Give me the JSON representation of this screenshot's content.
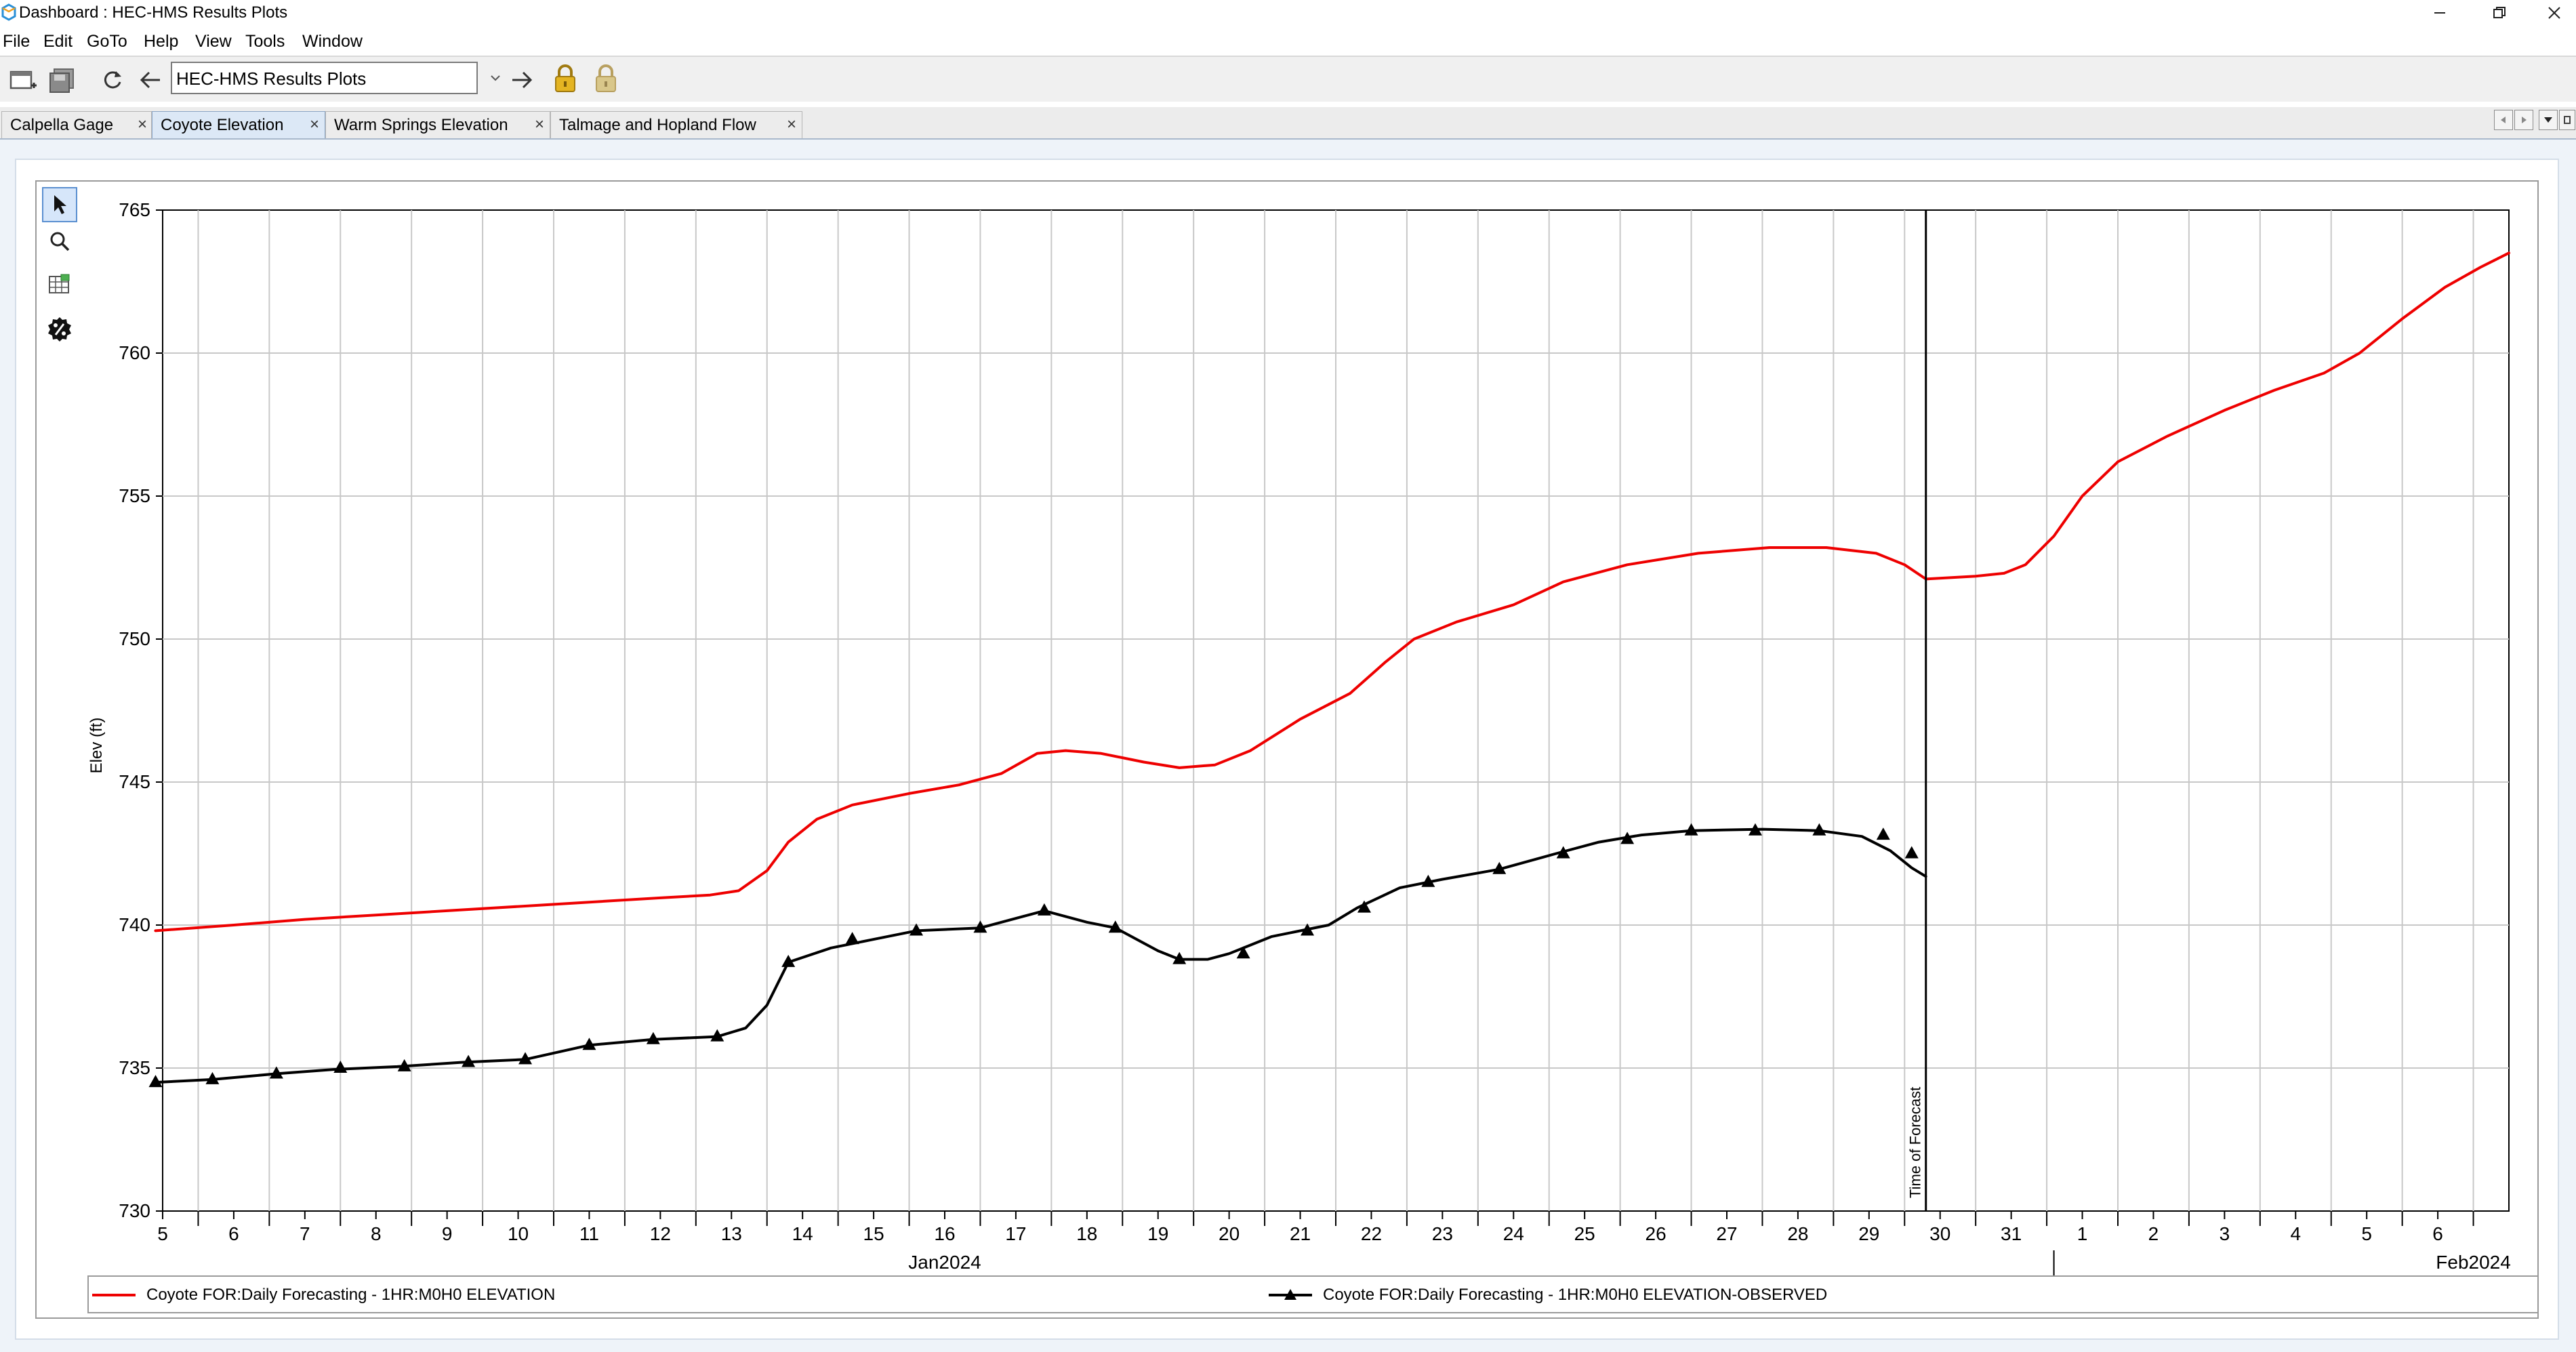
{
  "window": {
    "title": "Dashboard : HEC-HMS Results Plots",
    "icons": {
      "logo": "hec-hms-logo-icon",
      "minimize": "minimize-icon",
      "restore": "restore-icon",
      "close": "close-icon"
    }
  },
  "menu": [
    "File",
    "Edit",
    "GoTo",
    "Help",
    "View",
    "Tools",
    "Window"
  ],
  "toolbar": {
    "address_value": "HEC-HMS Results Plots",
    "icons": [
      "new-window-icon",
      "save-icon",
      "refresh-icon",
      "back-arrow-icon",
      "dropdown-icon",
      "forward-arrow-icon",
      "lock-icon",
      "lock-disabled-icon"
    ]
  },
  "tabs": [
    {
      "label": "Calpella Gage",
      "close": "×",
      "active": false
    },
    {
      "label": "Coyote Elevation",
      "close": "×",
      "active": true
    },
    {
      "label": "Warm Springs Elevation",
      "close": "×",
      "active": false
    },
    {
      "label": "Talmage and Hopland Flow",
      "close": "×",
      "active": false
    }
  ],
  "tab_nav_icons": [
    "scroll-left-icon",
    "scroll-right-icon",
    "tab-list-icon"
  ],
  "plot_tools": [
    "pointer-icon",
    "zoom-icon",
    "table-icon",
    "percent-icon"
  ],
  "colors": {
    "forecast": "#ee0000",
    "observed": "#000000",
    "grid": "#c8c8c8",
    "content_bg": "#eef3f9"
  },
  "chart_data": {
    "type": "line",
    "ylabel": "Elev (ft)",
    "ylim": [
      730,
      765
    ],
    "yticks": [
      730,
      735,
      740,
      745,
      750,
      755,
      760,
      765
    ],
    "x_unit": "days since Jan 5 2024 00:00",
    "xlim": [
      0,
      33
    ],
    "xticks": [
      {
        "label": "5",
        "x": 0
      },
      {
        "label": "6",
        "x": 1
      },
      {
        "label": "7",
        "x": 2
      },
      {
        "label": "8",
        "x": 3
      },
      {
        "label": "9",
        "x": 4
      },
      {
        "label": "10",
        "x": 5
      },
      {
        "label": "11",
        "x": 6
      },
      {
        "label": "12",
        "x": 7
      },
      {
        "label": "13",
        "x": 8
      },
      {
        "label": "14",
        "x": 9
      },
      {
        "label": "15",
        "x": 10
      },
      {
        "label": "16",
        "x": 11
      },
      {
        "label": "17",
        "x": 12
      },
      {
        "label": "18",
        "x": 13
      },
      {
        "label": "19",
        "x": 14
      },
      {
        "label": "20",
        "x": 15
      },
      {
        "label": "21",
        "x": 16
      },
      {
        "label": "22",
        "x": 17
      },
      {
        "label": "23",
        "x": 18
      },
      {
        "label": "24",
        "x": 19
      },
      {
        "label": "25",
        "x": 20
      },
      {
        "label": "26",
        "x": 21
      },
      {
        "label": "27",
        "x": 22
      },
      {
        "label": "28",
        "x": 23
      },
      {
        "label": "29",
        "x": 24
      },
      {
        "label": "30",
        "x": 25
      },
      {
        "label": "31",
        "x": 26
      },
      {
        "label": "1",
        "x": 27
      },
      {
        "label": "2",
        "x": 28
      },
      {
        "label": "3",
        "x": 29
      },
      {
        "label": "4",
        "x": 30
      },
      {
        "label": "5",
        "x": 31
      },
      {
        "label": "6",
        "x": 32
      }
    ],
    "month_labels": [
      {
        "label": "Jan2024",
        "x": 11
      },
      {
        "label": "Feb2024",
        "x": 32.5
      }
    ],
    "month_divider_x": 26.6,
    "forecast_marker": {
      "label": "Time of Forecast",
      "x": 24.8
    },
    "grid": true,
    "legend_position": "bottom",
    "series": [
      {
        "name": "Coyote FOR:Daily Forecasting - 1HR:M0H0 ELEVATION",
        "color": "#ee0000",
        "marker": "none",
        "points": [
          [
            -0.1,
            739.8
          ],
          [
            1,
            740.0
          ],
          [
            2,
            740.2
          ],
          [
            3,
            740.35
          ],
          [
            4,
            740.5
          ],
          [
            5,
            740.65
          ],
          [
            6,
            740.8
          ],
          [
            7,
            740.95
          ],
          [
            7.7,
            741.05
          ],
          [
            8.1,
            741.2
          ],
          [
            8.5,
            741.9
          ],
          [
            8.8,
            742.9
          ],
          [
            9.2,
            743.7
          ],
          [
            9.7,
            744.2
          ],
          [
            10.5,
            744.6
          ],
          [
            11.2,
            744.9
          ],
          [
            11.8,
            745.3
          ],
          [
            12.3,
            746.0
          ],
          [
            12.7,
            746.1
          ],
          [
            13.2,
            746.0
          ],
          [
            13.8,
            745.7
          ],
          [
            14.3,
            745.5
          ],
          [
            14.8,
            745.6
          ],
          [
            15.3,
            746.1
          ],
          [
            16.0,
            747.2
          ],
          [
            16.7,
            748.1
          ],
          [
            17.2,
            749.2
          ],
          [
            17.6,
            750.0
          ],
          [
            18.2,
            750.6
          ],
          [
            19.0,
            751.2
          ],
          [
            19.7,
            752.0
          ],
          [
            20.6,
            752.6
          ],
          [
            21.6,
            753.0
          ],
          [
            22.6,
            753.2
          ],
          [
            23.4,
            753.2
          ],
          [
            24.1,
            753.0
          ],
          [
            24.5,
            752.6
          ],
          [
            24.8,
            752.1
          ],
          [
            25.5,
            752.2
          ],
          [
            25.9,
            752.3
          ],
          [
            26.2,
            752.6
          ],
          [
            26.6,
            753.6
          ],
          [
            27.0,
            755.0
          ],
          [
            27.5,
            756.2
          ],
          [
            28.2,
            757.1
          ],
          [
            29.0,
            758.0
          ],
          [
            29.7,
            758.7
          ],
          [
            30.4,
            759.3
          ],
          [
            30.9,
            760.0
          ],
          [
            31.5,
            761.2
          ],
          [
            32.1,
            762.3
          ],
          [
            32.6,
            763.0
          ],
          [
            33.0,
            763.5
          ]
        ]
      },
      {
        "name": "Coyote FOR:Daily Forecasting - 1HR:M0H0 ELEVATION-OBSERVED",
        "color": "#000000",
        "marker": "triangle",
        "points": [
          [
            -0.1,
            734.5
          ],
          [
            0.7,
            734.6
          ],
          [
            1.6,
            734.8
          ],
          [
            2.4,
            734.95
          ],
          [
            3.3,
            735.05
          ],
          [
            4.2,
            735.2
          ],
          [
            5.1,
            735.3
          ],
          [
            6.0,
            735.8
          ],
          [
            6.9,
            736.0
          ],
          [
            7.8,
            736.1
          ],
          [
            8.2,
            736.4
          ],
          [
            8.5,
            737.2
          ],
          [
            8.8,
            738.7
          ],
          [
            9.4,
            739.2
          ],
          [
            10.0,
            739.5
          ],
          [
            10.6,
            739.8
          ],
          [
            11.5,
            739.9
          ],
          [
            12.1,
            740.3
          ],
          [
            12.4,
            740.5
          ],
          [
            13.0,
            740.1
          ],
          [
            13.4,
            739.9
          ],
          [
            14.0,
            739.1
          ],
          [
            14.3,
            738.8
          ],
          [
            14.7,
            738.8
          ],
          [
            15.0,
            739.0
          ],
          [
            15.6,
            739.6
          ],
          [
            16.4,
            740.0
          ],
          [
            16.8,
            740.6
          ],
          [
            17.4,
            741.3
          ],
          [
            18.0,
            741.6
          ],
          [
            18.8,
            741.95
          ],
          [
            19.6,
            742.5
          ],
          [
            20.2,
            742.9
          ],
          [
            20.8,
            743.15
          ],
          [
            21.5,
            743.3
          ],
          [
            22.5,
            743.35
          ],
          [
            23.3,
            743.3
          ],
          [
            23.9,
            743.1
          ],
          [
            24.3,
            742.6
          ],
          [
            24.6,
            742.0
          ],
          [
            24.8,
            741.7
          ]
        ],
        "markers": [
          [
            -0.1,
            734.5
          ],
          [
            0.7,
            734.6
          ],
          [
            1.6,
            734.8
          ],
          [
            2.5,
            735.0
          ],
          [
            3.4,
            735.05
          ],
          [
            4.3,
            735.2
          ],
          [
            5.1,
            735.3
          ],
          [
            6.0,
            735.8
          ],
          [
            6.9,
            736.0
          ],
          [
            7.8,
            736.1
          ],
          [
            8.8,
            738.7
          ],
          [
            9.7,
            739.5
          ],
          [
            10.6,
            739.8
          ],
          [
            11.5,
            739.9
          ],
          [
            12.4,
            740.5
          ],
          [
            13.4,
            739.9
          ],
          [
            14.3,
            738.8
          ],
          [
            15.2,
            739.0
          ],
          [
            16.1,
            739.8
          ],
          [
            16.9,
            740.6
          ],
          [
            17.8,
            741.5
          ],
          [
            18.8,
            741.95
          ],
          [
            19.7,
            742.5
          ],
          [
            20.6,
            743.0
          ],
          [
            21.5,
            743.3
          ],
          [
            22.4,
            743.3
          ],
          [
            23.3,
            743.3
          ],
          [
            24.2,
            743.15
          ],
          [
            24.6,
            742.5
          ]
        ]
      }
    ]
  }
}
